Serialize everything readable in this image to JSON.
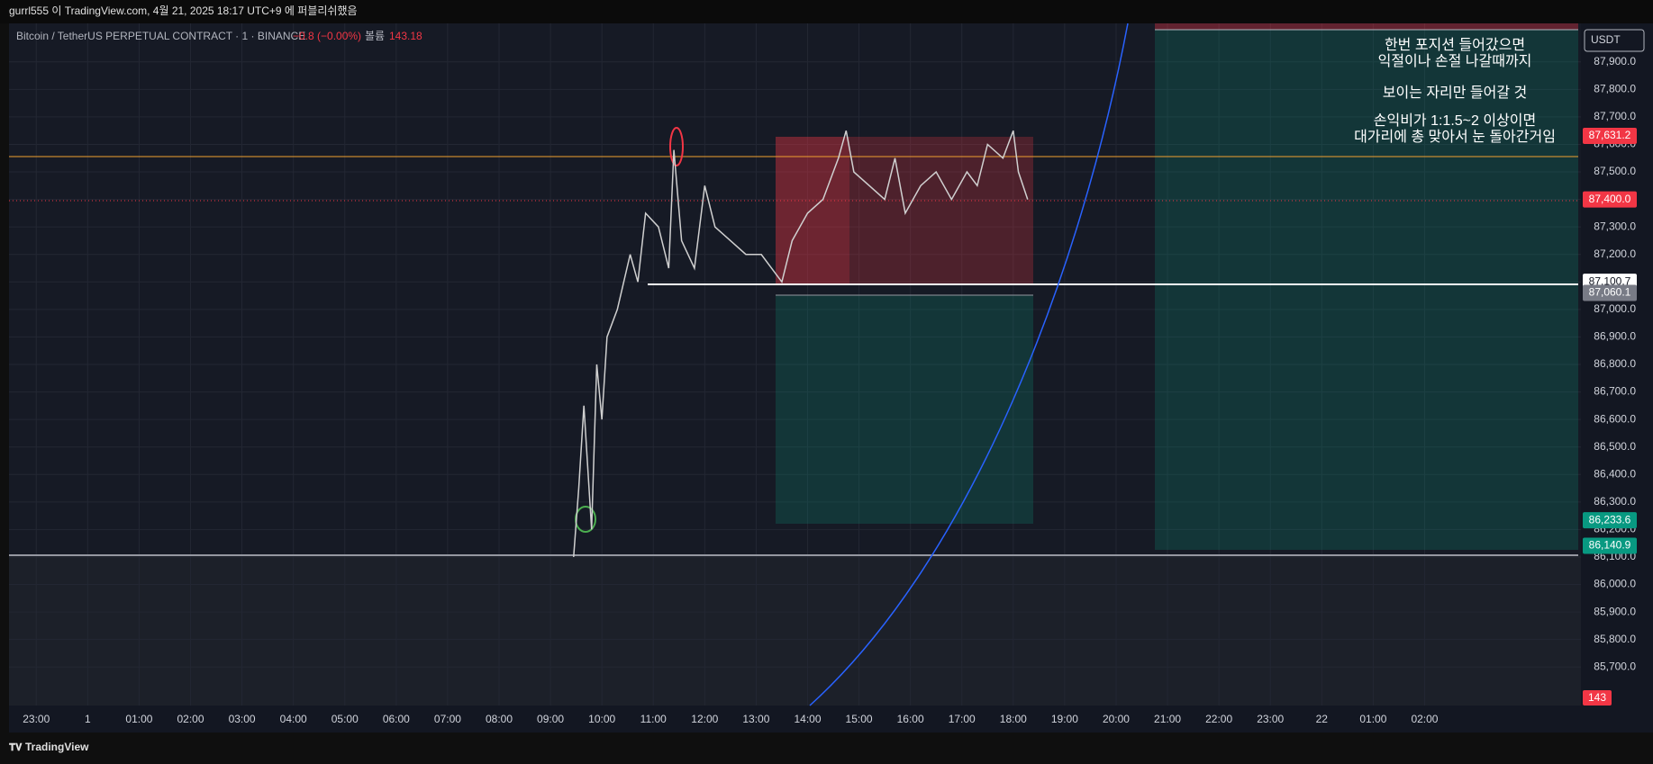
{
  "header": {
    "title": "gurrl555 이 TradingView.com, 4월 21, 2025 18:17 UTC+9 에 퍼블리쉬했음"
  },
  "symbol": {
    "name": "Bitcoin / TetherUS PERPETUAL CONTRACT · 1 · BINANCE",
    "change": "−0.8 (−0.00%)",
    "volume_label": "볼륨",
    "volume": "143.18"
  },
  "currency": "USDT",
  "footer": {
    "brand": "TradingView"
  },
  "annotation": {
    "lines": [
      "한번 포지션 들어갔으면",
      "익절이나 손절 나갈때까지",
      "보이는 자리만 들어갈 것",
      "손익비가 1:1.5~2 이상이면",
      "대가리에 총 맞아서 눈 돌아간거임"
    ]
  },
  "chart_data": {
    "type": "line",
    "color": "#d0d0d0",
    "x": [
      10.45,
      10.55,
      10.65,
      10.8,
      10.9,
      11.0,
      11.1,
      11.3,
      11.55,
      11.7,
      11.85,
      12.1,
      12.3,
      12.4,
      12.55,
      12.8,
      13.0,
      13.2,
      13.5,
      13.8,
      14.1,
      14.3,
      14.5,
      14.7,
      15.0,
      15.3,
      15.6,
      15.75,
      15.9,
      16.2,
      16.5,
      16.7,
      16.9,
      17.2,
      17.5,
      17.8,
      18.1,
      18.3,
      18.5,
      18.8,
      19.0,
      19.1,
      19.28
    ],
    "values": [
      86100,
      86350,
      86650,
      86200,
      86800,
      86600,
      86900,
      87000,
      87200,
      87100,
      87350,
      87300,
      87150,
      87580,
      87250,
      87150,
      87450,
      87300,
      87250,
      87200,
      87200,
      87150,
      87100,
      87250,
      87350,
      87400,
      87550,
      87650,
      87500,
      87450,
      87400,
      87550,
      87350,
      87450,
      87500,
      87400,
      87500,
      87450,
      87600,
      87550,
      87650,
      87500,
      87400
    ],
    "xlim": [
      -0.53,
      30.04
    ],
    "ylim": [
      85560,
      88040
    ],
    "xticks": [
      {
        "value": 0,
        "label": "23:00"
      },
      1,
      {
        "value": 2,
        "label": "01:00"
      },
      {
        "value": 3,
        "label": "02:00"
      },
      {
        "value": 4,
        "label": "03:00"
      },
      {
        "value": 5,
        "label": "04:00"
      },
      {
        "value": 6,
        "label": "05:00"
      },
      {
        "value": 7,
        "label": "06:00"
      },
      {
        "value": 8,
        "label": "07:00"
      },
      {
        "value": 9,
        "label": "08:00"
      },
      {
        "value": 10,
        "label": "09:00"
      },
      {
        "value": 11,
        "label": "10:00"
      },
      {
        "value": 12,
        "label": "11:00"
      },
      {
        "value": 13,
        "label": "12:00"
      },
      {
        "value": 14,
        "label": "13:00"
      },
      {
        "value": 15,
        "label": "14:00"
      },
      {
        "value": 16,
        "label": "15:00"
      },
      {
        "value": 17,
        "label": "16:00"
      },
      {
        "value": 18,
        "label": "17:00"
      },
      {
        "value": 19,
        "label": "18:00"
      },
      {
        "value": 20,
        "label": "19:00"
      },
      {
        "value": 21,
        "label": "20:00"
      },
      {
        "value": 22,
        "label": "21:00"
      },
      {
        "value": 23,
        "label": "22:00"
      },
      {
        "value": 24,
        "label": "23:00"
      },
      {
        "value": 25,
        "label": "22"
      },
      {
        "value": 26,
        "label": "01:00"
      },
      {
        "value": 27,
        "label": "02:00"
      }
    ],
    "yticks": [
      {
        "value": 87900,
        "label": "87,900.0"
      },
      {
        "value": 87800,
        "label": "87,800.0"
      },
      {
        "value": 87700,
        "label": "87,700.0"
      },
      {
        "value": 87600,
        "label": "87,600.0"
      },
      {
        "value": 87500,
        "label": "87,500.0"
      },
      {
        "value": 87400,
        "label": "87,400.0"
      },
      {
        "value": 87300,
        "label": "87,300.0"
      },
      {
        "value": 87200,
        "label": "87,200.0"
      },
      {
        "value": 87100,
        "label": "87,100.0"
      },
      {
        "value": 87000,
        "label": "87,000.0"
      },
      {
        "value": 86900,
        "label": "86,900.0"
      },
      {
        "value": 86800,
        "label": "86,800.0"
      },
      {
        "value": 86700,
        "label": "86,700.0"
      },
      {
        "value": 86600,
        "label": "86,600.0"
      },
      {
        "value": 86500,
        "label": "86,500.0"
      },
      {
        "value": 86400,
        "label": "86,400.0"
      },
      {
        "value": 86300,
        "label": "86,300.0"
      },
      {
        "value": 86200,
        "label": "86,200.0"
      },
      {
        "value": 86100,
        "label": "86,100.0"
      },
      {
        "value": 86000,
        "label": "86,000.0"
      },
      {
        "value": 85900,
        "label": "85,900.0"
      },
      {
        "value": 85800,
        "label": "85,800.0"
      },
      {
        "value": 85700,
        "label": "85,700.0"
      }
    ],
    "grid": true,
    "price_badges": [
      {
        "value": 87631.2,
        "label": "87,631.2",
        "color": "#f23645"
      },
      {
        "value": 87400.0,
        "label": "87,400.0",
        "color": "#f23645"
      },
      {
        "value": 87100.7,
        "label": "87,100.7",
        "color": "#ffffff"
      },
      {
        "value": 87060.1,
        "label": "87,060.1",
        "color": "#787b86"
      },
      {
        "value": 86233.6,
        "label": "86,233.6",
        "color": "#089981"
      },
      {
        "value": 86140.9,
        "label": "86,140.9",
        "color": "#089981"
      }
    ],
    "volume_badge": {
      "value": 143,
      "color": "#f23645"
    }
  }
}
